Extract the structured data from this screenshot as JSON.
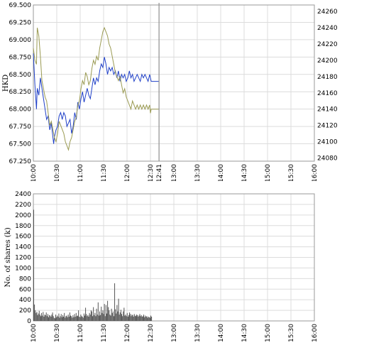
{
  "chart_data": [
    {
      "type": "line",
      "ylabel": "HKD",
      "ylim": [
        67.25,
        69.5
      ],
      "yticks": [
        "67.250",
        "67.500",
        "67.750",
        "68.000",
        "68.250",
        "68.500",
        "68.750",
        "69.000",
        "69.250",
        "69.500"
      ],
      "y2lim": [
        24076,
        24268
      ],
      "y2ticks": [
        "24080",
        "24100",
        "24120",
        "24140",
        "24160",
        "24180",
        "24200",
        "24220",
        "24240",
        "24260"
      ],
      "xlim": [
        0,
        360
      ],
      "xticks": [
        {
          "label": "10:00",
          "m": 0
        },
        {
          "label": "10:30",
          "m": 30
        },
        {
          "label": "11:00",
          "m": 60
        },
        {
          "label": "11:30",
          "m": 90
        },
        {
          "label": "12:00",
          "m": 120
        },
        {
          "label": "12:30",
          "m": 150
        },
        {
          "label": "12:41",
          "m": 161
        },
        {
          "label": "13:00",
          "m": 180
        },
        {
          "label": "13:30",
          "m": 210
        },
        {
          "label": "14:00",
          "m": 240
        },
        {
          "label": "14:30",
          "m": 270
        },
        {
          "label": "15:00",
          "m": 300
        },
        {
          "label": "15:30",
          "m": 330
        },
        {
          "label": "16:00",
          "m": 360
        }
      ],
      "grid": true,
      "marker_minute": 161,
      "series": [
        {
          "axis": "left",
          "color": "#2040c8",
          "points": [
            [
              0,
              68.8
            ],
            [
              2,
              68.35
            ],
            [
              4,
              68.0
            ],
            [
              5,
              68.3
            ],
            [
              7,
              68.2
            ],
            [
              9,
              68.45
            ],
            [
              11,
              68.3
            ],
            [
              13,
              68.15
            ],
            [
              15,
              68.0
            ],
            [
              17,
              67.85
            ],
            [
              19,
              67.9
            ],
            [
              21,
              67.7
            ],
            [
              23,
              67.8
            ],
            [
              25,
              67.6
            ],
            [
              26,
              67.5
            ],
            [
              27,
              67.6
            ],
            [
              29,
              67.7
            ],
            [
              31,
              67.75
            ],
            [
              33,
              67.9
            ],
            [
              35,
              67.95
            ],
            [
              37,
              67.85
            ],
            [
              39,
              67.95
            ],
            [
              41,
              67.9
            ],
            [
              43,
              67.75
            ],
            [
              45,
              67.8
            ],
            [
              47,
              67.85
            ],
            [
              49,
              67.65
            ],
            [
              51,
              67.75
            ],
            [
              53,
              67.95
            ],
            [
              55,
              67.85
            ],
            [
              57,
              68.1
            ],
            [
              59,
              68.0
            ],
            [
              61,
              68.15
            ],
            [
              63,
              68.25
            ],
            [
              65,
              68.1
            ],
            [
              67,
              68.2
            ],
            [
              69,
              68.3
            ],
            [
              71,
              68.2
            ],
            [
              73,
              68.15
            ],
            [
              75,
              68.3
            ],
            [
              77,
              68.45
            ],
            [
              79,
              68.35
            ],
            [
              81,
              68.45
            ],
            [
              83,
              68.4
            ],
            [
              85,
              68.55
            ],
            [
              87,
              68.65
            ],
            [
              89,
              68.6
            ],
            [
              91,
              68.75
            ],
            [
              93,
              68.65
            ],
            [
              95,
              68.5
            ],
            [
              97,
              68.6
            ],
            [
              99,
              68.55
            ],
            [
              101,
              68.6
            ],
            [
              103,
              68.5
            ],
            [
              105,
              68.55
            ],
            [
              107,
              68.45
            ],
            [
              109,
              68.55
            ],
            [
              111,
              68.4
            ],
            [
              113,
              68.5
            ],
            [
              115,
              68.45
            ],
            [
              117,
              68.5
            ],
            [
              119,
              68.4
            ],
            [
              121,
              68.45
            ],
            [
              123,
              68.55
            ],
            [
              125,
              68.45
            ],
            [
              127,
              68.5
            ],
            [
              129,
              68.4
            ],
            [
              131,
              68.45
            ],
            [
              133,
              68.5
            ],
            [
              135,
              68.45
            ],
            [
              137,
              68.4
            ],
            [
              139,
              68.5
            ],
            [
              141,
              68.45
            ],
            [
              143,
              68.5
            ],
            [
              145,
              68.45
            ],
            [
              147,
              68.4
            ],
            [
              149,
              68.5
            ],
            [
              150,
              68.45
            ],
            [
              151,
              68.4
            ],
            [
              161,
              68.4
            ]
          ]
        },
        {
          "axis": "right",
          "color": "#9a9a52",
          "points": [
            [
              0,
              24215
            ],
            [
              2,
              24200
            ],
            [
              4,
              24195
            ],
            [
              5,
              24240
            ],
            [
              7,
              24230
            ],
            [
              9,
              24205
            ],
            [
              11,
              24175
            ],
            [
              13,
              24165
            ],
            [
              15,
              24155
            ],
            [
              17,
              24150
            ],
            [
              19,
              24135
            ],
            [
              21,
              24120
            ],
            [
              23,
              24125
            ],
            [
              25,
              24115
            ],
            [
              27,
              24105
            ],
            [
              29,
              24100
            ],
            [
              31,
              24110
            ],
            [
              33,
              24125
            ],
            [
              35,
              24120
            ],
            [
              37,
              24115
            ],
            [
              39,
              24110
            ],
            [
              41,
              24100
            ],
            [
              43,
              24095
            ],
            [
              45,
              24090
            ],
            [
              47,
              24100
            ],
            [
              49,
              24105
            ],
            [
              51,
              24115
            ],
            [
              53,
              24125
            ],
            [
              55,
              24130
            ],
            [
              57,
              24145
            ],
            [
              59,
              24150
            ],
            [
              61,
              24165
            ],
            [
              63,
              24175
            ],
            [
              65,
              24170
            ],
            [
              67,
              24185
            ],
            [
              69,
              24180
            ],
            [
              71,
              24170
            ],
            [
              73,
              24175
            ],
            [
              75,
              24190
            ],
            [
              77,
              24200
            ],
            [
              79,
              24195
            ],
            [
              81,
              24205
            ],
            [
              83,
              24200
            ],
            [
              85,
              24215
            ],
            [
              87,
              24225
            ],
            [
              89,
              24235
            ],
            [
              91,
              24240
            ],
            [
              93,
              24235
            ],
            [
              95,
              24230
            ],
            [
              97,
              24220
            ],
            [
              99,
              24215
            ],
            [
              101,
              24205
            ],
            [
              103,
              24195
            ],
            [
              105,
              24185
            ],
            [
              107,
              24180
            ],
            [
              109,
              24175
            ],
            [
              111,
              24180
            ],
            [
              113,
              24170
            ],
            [
              115,
              24160
            ],
            [
              117,
              24165
            ],
            [
              119,
              24155
            ],
            [
              121,
              24150
            ],
            [
              123,
              24145
            ],
            [
              125,
              24140
            ],
            [
              127,
              24150
            ],
            [
              129,
              24145
            ],
            [
              131,
              24140
            ],
            [
              133,
              24145
            ],
            [
              135,
              24140
            ],
            [
              137,
              24145
            ],
            [
              139,
              24140
            ],
            [
              141,
              24145
            ],
            [
              143,
              24140
            ],
            [
              145,
              24145
            ],
            [
              147,
              24140
            ],
            [
              149,
              24145
            ],
            [
              150,
              24135
            ],
            [
              151,
              24140
            ],
            [
              161,
              24140
            ]
          ]
        }
      ]
    },
    {
      "type": "bar",
      "ylabel": "No. of shares (k)",
      "ylim": [
        0,
        2400
      ],
      "yticks": [
        "0",
        "200",
        "400",
        "600",
        "800",
        "1000",
        "1200",
        "1400",
        "1600",
        "1800",
        "2000",
        "2200",
        "2400"
      ],
      "xlim": [
        0,
        360
      ],
      "xticks": [
        {
          "label": "10:00",
          "m": 0
        },
        {
          "label": "10:30",
          "m": 30
        },
        {
          "label": "11:00",
          "m": 60
        },
        {
          "label": "11:30",
          "m": 90
        },
        {
          "label": "12:00",
          "m": 120
        },
        {
          "label": "12:30",
          "m": 150
        },
        {
          "label": "13:00",
          "m": 180
        },
        {
          "label": "13:30",
          "m": 210
        },
        {
          "label": "14:00",
          "m": 240
        },
        {
          "label": "14:30",
          "m": 270
        },
        {
          "label": "15:00",
          "m": 300
        },
        {
          "label": "15:30",
          "m": 330
        },
        {
          "label": "16:00",
          "m": 360
        }
      ],
      "grid": true,
      "color": "#555555",
      "values": [
        2100,
        310,
        200,
        150,
        170,
        110,
        140,
        190,
        120,
        90,
        150,
        100,
        170,
        80,
        120,
        110,
        160,
        90,
        130,
        70,
        110,
        100,
        80,
        120,
        160,
        90,
        60,
        50,
        120,
        70,
        100,
        80,
        140,
        60,
        90,
        130,
        70,
        110,
        80,
        150,
        60,
        90,
        100,
        70,
        120,
        80,
        160,
        100,
        90,
        60,
        110,
        70,
        130,
        80,
        150,
        90,
        100,
        200,
        80,
        70,
        120,
        90,
        80,
        60,
        140,
        100,
        250,
        130,
        90,
        110,
        80,
        150,
        120,
        200,
        180,
        90,
        260,
        110,
        150,
        90,
        230,
        120,
        350,
        100,
        180,
        110,
        270,
        150,
        200,
        130,
        320,
        90,
        300,
        140,
        380,
        260,
        200,
        120,
        100,
        230,
        150,
        180,
        90,
        710,
        220,
        140,
        300,
        180,
        420,
        120,
        160,
        210,
        130,
        90,
        180,
        250,
        100,
        120,
        90,
        150,
        80,
        110,
        160,
        130,
        90,
        120,
        110,
        80,
        130,
        100,
        90,
        120,
        110,
        80,
        100,
        130,
        90,
        110,
        80,
        90,
        120,
        70,
        100,
        80,
        90,
        60,
        80,
        70,
        60,
        100,
        80
      ]
    }
  ]
}
